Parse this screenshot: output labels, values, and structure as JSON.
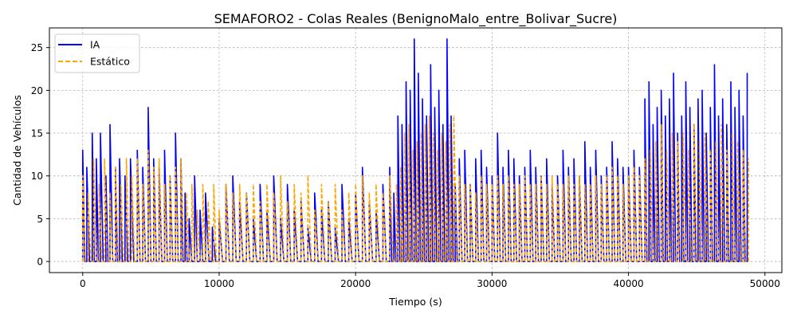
{
  "chart_data": {
    "type": "line",
    "title": "SEMAFORO2 - Colas Reales (BenignoMalo_entre_Bolivar_Sucre)",
    "xlabel": "Tiempo (s)",
    "ylabel": "Cantidad de Vehículos",
    "xlim": [
      -2440,
      51240
    ],
    "ylim": [
      -1.3,
      27.3
    ],
    "x_ticks": [
      0,
      10000,
      20000,
      30000,
      40000,
      50000
    ],
    "y_ticks": [
      0,
      5,
      10,
      15,
      20,
      25
    ],
    "grid": true,
    "legend": "top-left",
    "series": [
      {
        "name": "IA",
        "color": "#0000ff",
        "style": "solid",
        "x": [
          0,
          300,
          700,
          1000,
          1300,
          1700,
          2000,
          2400,
          2700,
          3100,
          3500,
          4000,
          4400,
          4800,
          5200,
          5600,
          6000,
          6400,
          6800,
          7200,
          7500,
          7800,
          8200,
          8600,
          9000,
          9500,
          10000,
          10500,
          11000,
          11500,
          12000,
          12500,
          13000,
          13500,
          14000,
          14500,
          15000,
          15500,
          16000,
          16500,
          17000,
          17500,
          18000,
          18500,
          19000,
          19500,
          20000,
          20500,
          21000,
          21500,
          22000,
          22500,
          22800,
          23100,
          23400,
          23700,
          24000,
          24300,
          24600,
          24900,
          25200,
          25500,
          25800,
          26100,
          26400,
          26700,
          27000,
          27300,
          27600,
          28000,
          28400,
          28800,
          29200,
          29600,
          30000,
          30400,
          30800,
          31200,
          31600,
          32000,
          32400,
          32800,
          33200,
          33600,
          34000,
          34400,
          34800,
          35200,
          35600,
          36000,
          36400,
          36800,
          37200,
          37600,
          38000,
          38400,
          38800,
          39200,
          39600,
          40000,
          40400,
          40800,
          41200,
          41500,
          41800,
          42100,
          42400,
          42700,
          43000,
          43300,
          43600,
          43900,
          44200,
          44500,
          44800,
          45100,
          45400,
          45700,
          46000,
          46300,
          46600,
          46900,
          47200,
          47500,
          47800,
          48100,
          48400,
          48700
        ],
        "values": [
          13,
          11,
          15,
          12,
          15,
          10,
          16,
          11,
          12,
          10,
          12,
          13,
          11,
          18,
          12,
          11,
          13,
          10,
          15,
          12,
          8,
          5,
          10,
          6,
          8,
          4,
          5,
          9,
          10,
          7,
          8,
          5,
          9,
          6,
          10,
          5,
          9,
          6,
          7,
          4,
          8,
          6,
          7,
          4,
          9,
          5,
          8,
          11,
          7,
          6,
          9,
          11,
          8,
          17,
          16,
          21,
          20,
          26,
          22,
          19,
          17,
          23,
          18,
          20,
          16,
          26,
          17,
          9,
          12,
          13,
          9,
          12,
          13,
          11,
          10,
          15,
          11,
          13,
          12,
          10,
          11,
          13,
          11,
          10,
          12,
          9,
          10,
          13,
          11,
          12,
          10,
          14,
          11,
          13,
          10,
          11,
          14,
          12,
          11,
          11,
          13,
          11,
          19,
          21,
          16,
          18,
          20,
          17,
          19,
          22,
          15,
          17,
          21,
          18,
          16,
          19,
          20,
          15,
          18,
          23,
          17,
          19,
          16,
          21,
          18,
          20,
          17,
          22
        ]
      },
      {
        "name": "Estático",
        "color": "#ffa500",
        "style": "dashed",
        "x": [
          0,
          400,
          800,
          1200,
          1600,
          2000,
          2400,
          2800,
          3200,
          3600,
          4000,
          4400,
          4800,
          5200,
          5600,
          6000,
          6400,
          6800,
          7200,
          7600,
          8000,
          8400,
          8800,
          9200,
          9600,
          10000,
          10500,
          11000,
          11500,
          12000,
          12500,
          13000,
          13500,
          14000,
          14500,
          15000,
          15500,
          16000,
          16500,
          17000,
          17500,
          18000,
          18500,
          19000,
          19500,
          20000,
          20500,
          21000,
          21500,
          22000,
          22500,
          23000,
          23300,
          23600,
          23900,
          24200,
          24500,
          24800,
          25100,
          25400,
          25700,
          26000,
          26300,
          26600,
          26900,
          27200,
          27600,
          28000,
          28400,
          28800,
          29200,
          29600,
          30000,
          30400,
          30800,
          31200,
          31600,
          32000,
          32400,
          32800,
          33200,
          33600,
          34000,
          34400,
          34800,
          35200,
          35600,
          36000,
          36400,
          36800,
          37200,
          37600,
          38000,
          38400,
          38800,
          39200,
          39600,
          40000,
          40400,
          40800,
          41200,
          41600,
          42000,
          42400,
          42800,
          43200,
          43600,
          44000,
          44400,
          44800,
          45200,
          45600,
          46000,
          46400,
          46800,
          47200,
          47600,
          48000,
          48400,
          48800
        ],
        "values": [
          10,
          8,
          12,
          9,
          12,
          8,
          11,
          9,
          12,
          10,
          12,
          9,
          13,
          11,
          12,
          9,
          10,
          11,
          12,
          8,
          9,
          6,
          9,
          7,
          9,
          6,
          9,
          8,
          9,
          8,
          9,
          7,
          9,
          8,
          10,
          7,
          9,
          8,
          10,
          6,
          9,
          7,
          9,
          6,
          8,
          9,
          10,
          8,
          9,
          8,
          10,
          9,
          11,
          15,
          16,
          13,
          14,
          15,
          16,
          17,
          15,
          13,
          15,
          14,
          16,
          17,
          10,
          9,
          9,
          8,
          10,
          9,
          9,
          10,
          9,
          10,
          9,
          9,
          10,
          9,
          9,
          10,
          9,
          10,
          9,
          9,
          10,
          9,
          10,
          9,
          9,
          10,
          9,
          10,
          11,
          10,
          9,
          10,
          11,
          10,
          12,
          13,
          14,
          16,
          13,
          15,
          14,
          15,
          13,
          16,
          14,
          15,
          13,
          14,
          16,
          13,
          15,
          14,
          13,
          12
        ]
      }
    ]
  }
}
